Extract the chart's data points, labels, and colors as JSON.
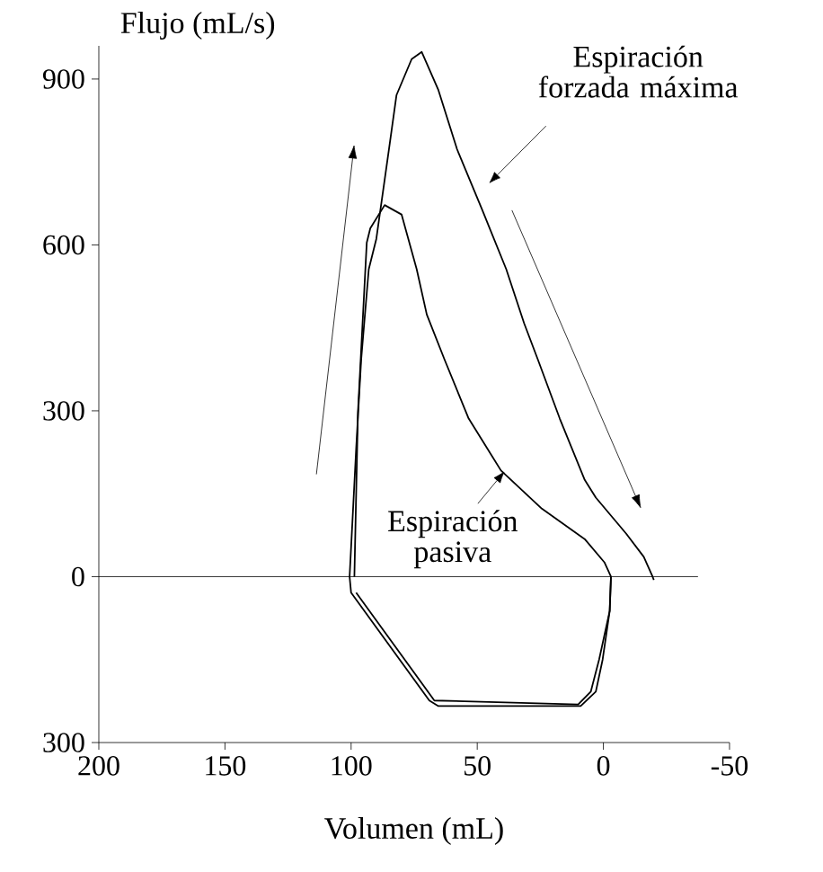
{
  "chart_data": {
    "type": "line",
    "xlabel": "Volumen (mL)",
    "ylabel": "Flujo (mL/s)",
    "xlim": [
      200,
      -50
    ],
    "xticks": [
      200,
      150,
      100,
      50,
      0,
      -50
    ],
    "ylim": [
      -300,
      960
    ],
    "yticks": [
      {
        "value": -300,
        "label": "300"
      },
      0,
      300,
      600,
      900
    ],
    "marker": "none",
    "line_style": "solid",
    "grid": false,
    "ref_lines": [
      {
        "axis": "y",
        "value": 0,
        "color": "#000000"
      }
    ],
    "annotations": [
      "Espiración forzada máxima",
      "Espiración pasiva"
    ],
    "series": [
      {
        "color": "#000000",
        "x": [
          -3,
          -2.5,
          0.3,
          3,
          9,
          65.4,
          69,
          100,
          100.6,
          98,
          96,
          93,
          90,
          85,
          82,
          76,
          72,
          65.4,
          58,
          48,
          38.5,
          31.4,
          26,
          17.3,
          7.4,
          3,
          -9,
          -16,
          -19.5,
          -20
        ],
        "values": [
          0,
          -62,
          -150,
          -208,
          -234,
          -234,
          -224,
          -29,
          0,
          231,
          393,
          556,
          611,
          773,
          871,
          936,
          949,
          880,
          773,
          663,
          556,
          458,
          393,
          286,
          175,
          143,
          78,
          36,
          0,
          -6
        ]
      },
      {
        "color": "#000000",
        "x": [
          98.7,
          97.3,
          93.8,
          92.4,
          86.7,
          80,
          74,
          70,
          63,
          53.4,
          40.6,
          24.4,
          7.4,
          -0.4,
          -3,
          -2.5,
          1.7,
          5,
          10,
          67,
          98
        ],
        "values": [
          0,
          296,
          604,
          630,
          672,
          655,
          556,
          474,
          393,
          286,
          192,
          123,
          68,
          26,
          0,
          -62,
          -150,
          -208,
          -231,
          -224,
          -29
        ]
      }
    ]
  }
}
